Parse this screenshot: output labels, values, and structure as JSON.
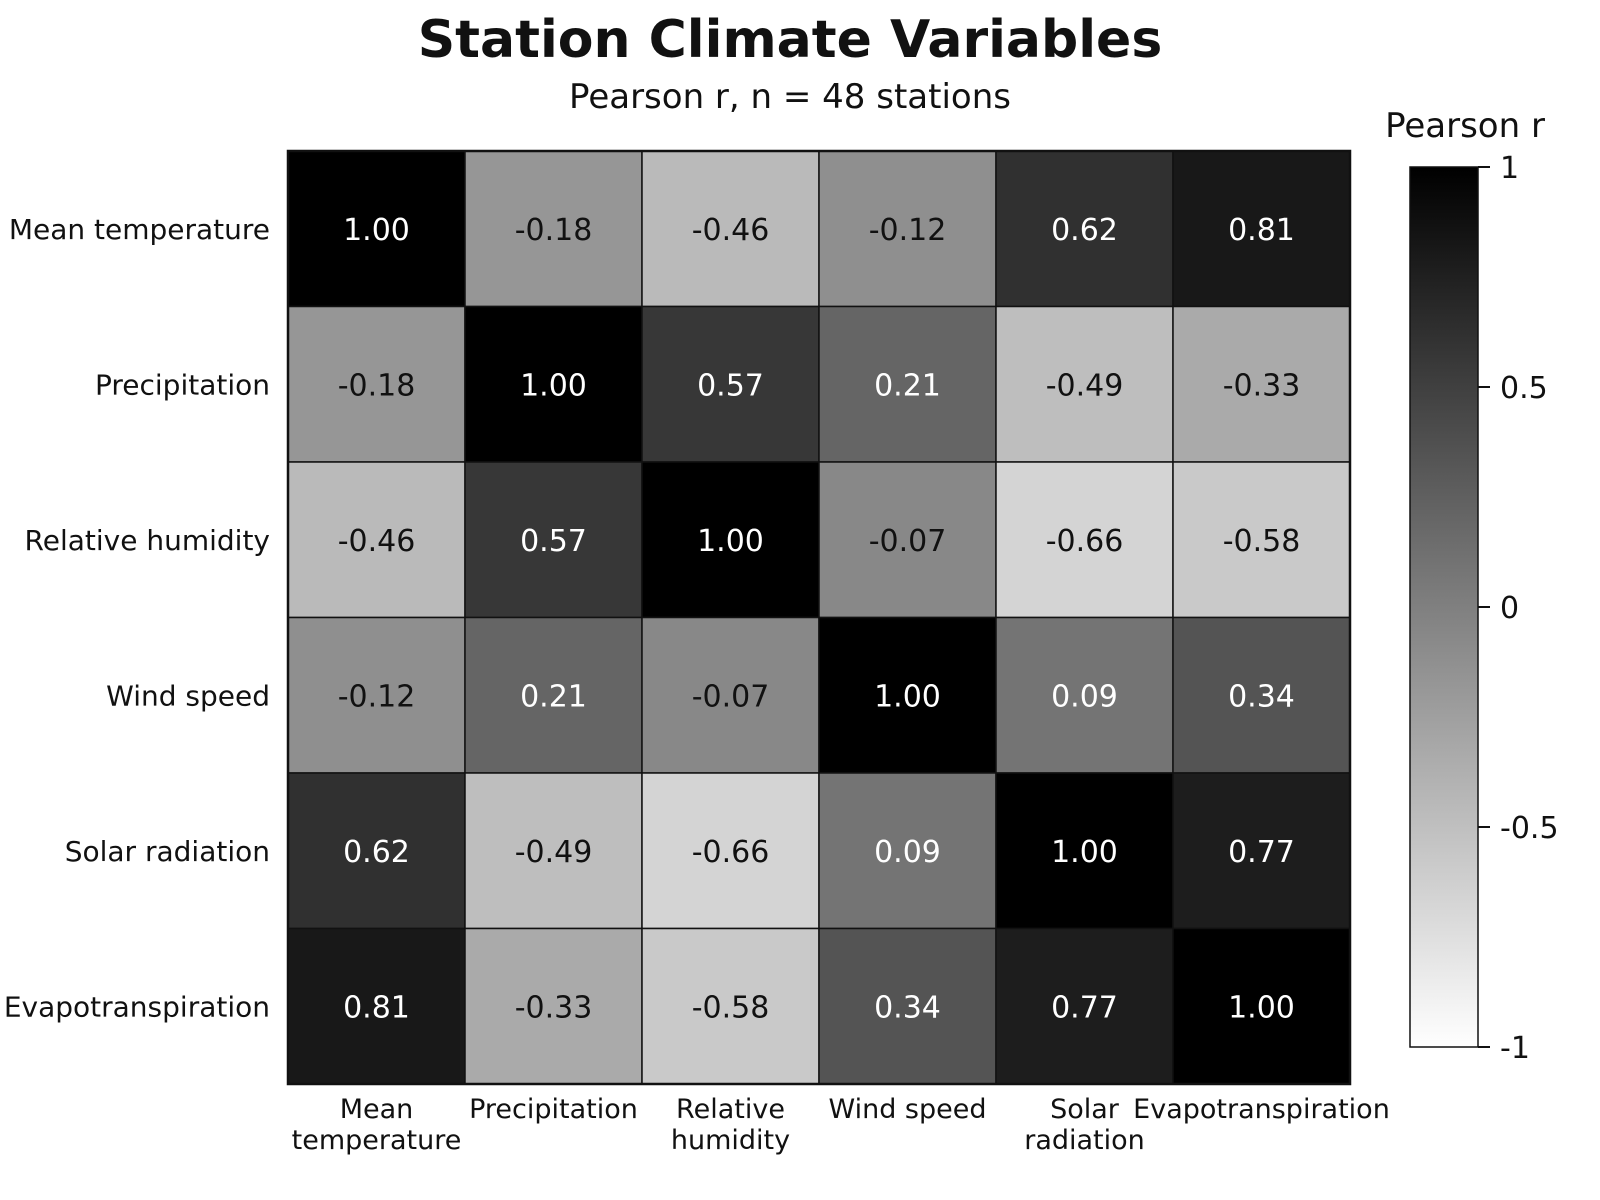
{
  "chart_data": {
    "type": "heatmap",
    "title": "Station Climate Variables",
    "subtitle": "Pearson r, n = 48 stations",
    "rows": [
      "Mean temperature",
      "Precipitation",
      "Relative humidity",
      "Wind speed",
      "Solar radiation",
      "Evapotranspiration"
    ],
    "columns": [
      [
        "Mean",
        "temperature"
      ],
      [
        "Precipitation"
      ],
      [
        "Relative",
        "humidity"
      ],
      [
        "Wind speed"
      ],
      [
        "Solar",
        "radiation"
      ],
      [
        "Evapotranspiration"
      ]
    ],
    "values": [
      [
        1.0,
        -0.18,
        -0.46,
        -0.12,
        0.62,
        0.81
      ],
      [
        -0.18,
        1.0,
        0.57,
        0.21,
        -0.49,
        -0.33
      ],
      [
        -0.46,
        0.57,
        1.0,
        -0.07,
        -0.66,
        -0.58
      ],
      [
        -0.12,
        0.21,
        -0.07,
        1.0,
        0.09,
        0.34
      ],
      [
        0.62,
        -0.49,
        -0.66,
        0.09,
        1.0,
        0.77
      ],
      [
        0.81,
        -0.33,
        -0.58,
        0.34,
        0.77,
        1.0
      ]
    ],
    "colorbar": {
      "label": "Pearson r",
      "range": [
        -1,
        1
      ],
      "ticks": [
        1,
        0.5,
        0,
        -0.5,
        -1
      ],
      "tick_labels": [
        "1",
        "0.5",
        "0",
        "-0.5",
        "-1"
      ],
      "color_low": "#ffffff",
      "color_high": "#000000"
    }
  }
}
